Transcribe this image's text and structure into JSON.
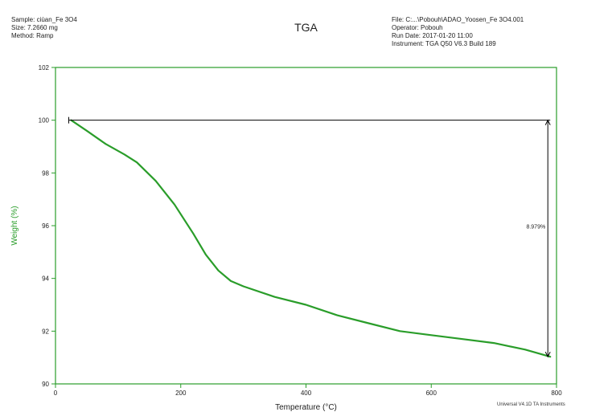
{
  "header": {
    "left_lines": [
      "Sample: ciùan_Fe 3O4",
      "Size: 7.2660 mg",
      "Method: Ramp"
    ],
    "right_lines": [
      "File: C:...\\Pobouh\\ADAO_Yoosen_Fe 3O4.001",
      "Operator: Pobouh",
      "Run Date: 2017-01-20 11:00",
      "Instrument: TGA Q50 V6.3 Build 189"
    ]
  },
  "footer": {
    "note": "Universal V4.1D TA Instruments"
  },
  "chart_data": {
    "type": "line",
    "title": "TGA",
    "xlabel": "Temperature (°C)",
    "ylabel": "Weight (%)",
    "xlim": [
      0,
      800
    ],
    "ylim": [
      90,
      102
    ],
    "x_ticks": [
      0,
      200,
      400,
      600,
      800
    ],
    "y_ticks": [
      90,
      92,
      94,
      96,
      98,
      100,
      102
    ],
    "grid": false,
    "series": [
      {
        "color": "#2a9d2a",
        "x": [
          25,
          50,
          80,
          110,
          130,
          160,
          190,
          220,
          240,
          260,
          280,
          300,
          350,
          400,
          450,
          500,
          550,
          600,
          650,
          700,
          750,
          790
        ],
        "y": [
          100.0,
          99.6,
          99.1,
          98.7,
          98.4,
          97.7,
          96.8,
          95.7,
          94.9,
          94.3,
          93.9,
          93.7,
          93.3,
          93.0,
          92.6,
          92.3,
          92.0,
          91.85,
          91.7,
          91.55,
          91.3,
          91.03
        ]
      }
    ],
    "annotations": [
      {
        "type": "weight-change",
        "x": 790,
        "y_top": 100.0,
        "y_bottom": 91.03,
        "y_label": 95.9,
        "label": "8.979%"
      }
    ],
    "colors": {
      "axis": "#2a9d2a",
      "curve": "#2a9d2a",
      "annotation": "#000000"
    }
  }
}
